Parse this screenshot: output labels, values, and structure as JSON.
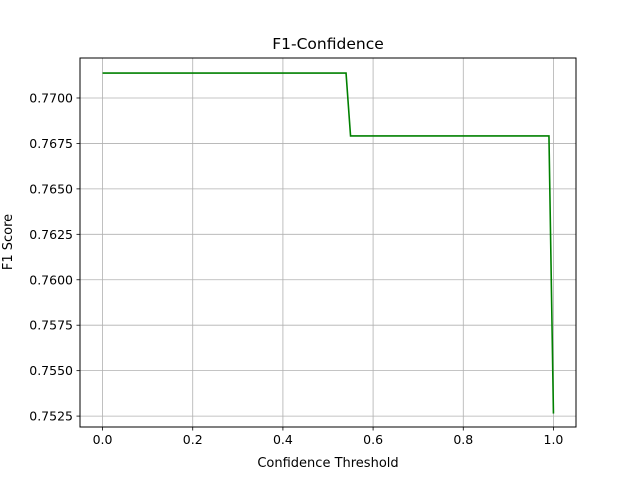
{
  "chart_data": {
    "type": "line",
    "title": "F1-Confidence",
    "xlabel": "Confidence Threshold",
    "ylabel": "F1 Score",
    "xlim": [
      -0.05,
      1.05
    ],
    "ylim": [
      0.7519,
      0.7722
    ],
    "xticks": [
      0.0,
      0.2,
      0.4,
      0.6,
      0.8,
      1.0
    ],
    "xtick_labels": [
      "0.0",
      "0.2",
      "0.4",
      "0.6",
      "0.8",
      "1.0"
    ],
    "yticks": [
      0.7525,
      0.755,
      0.7575,
      0.76,
      0.7625,
      0.765,
      0.7675,
      0.77
    ],
    "ytick_labels": [
      "0.7525",
      "0.7550",
      "0.7575",
      "0.7600",
      "0.7625",
      "0.7650",
      "0.7675",
      "0.7700"
    ],
    "grid": true,
    "series": [
      {
        "color": "#008000",
        "x": [
          0.0,
          0.54,
          0.55,
          0.99,
          1.0
        ],
        "y": [
          0.77137,
          0.77137,
          0.76791,
          0.76791,
          0.75264
        ]
      }
    ]
  }
}
